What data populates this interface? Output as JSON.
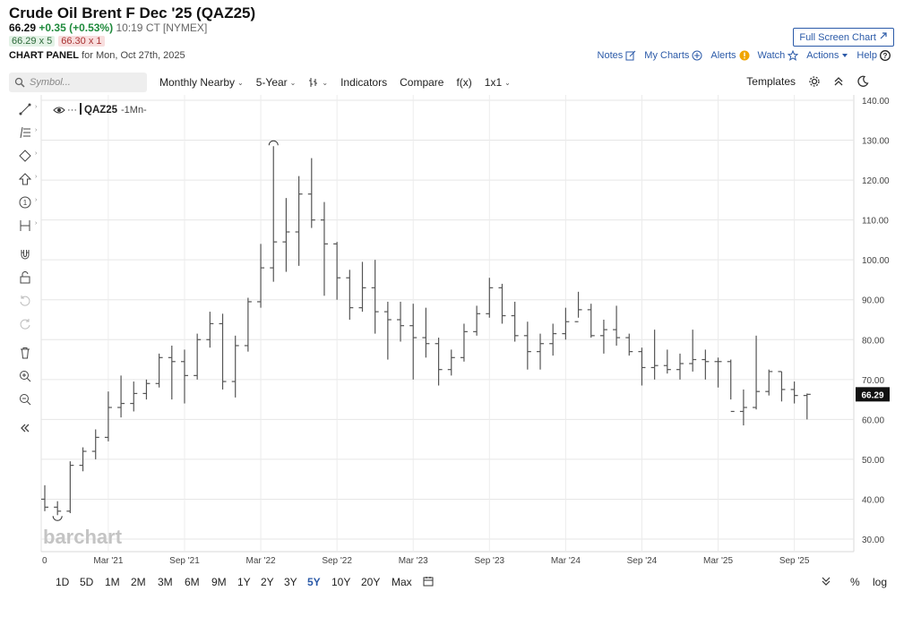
{
  "header": {
    "title": "Crude Oil Brent F Dec '25 (QAZ25)",
    "last": "66.29",
    "change": "+0.35 (+0.53%)",
    "time": "10:19 CT [NYMEX]",
    "bid": "66.29 x 5",
    "ask": "66.30 x 1",
    "panel_label": "CHART PANEL",
    "panel_date": "for Mon, Oct 27th, 2025",
    "fullscreen_label": "Full Screen Chart",
    "links": [
      {
        "label": "Notes",
        "icon": "edit-icon"
      },
      {
        "label": "My Charts",
        "icon": "plus-circle-icon"
      },
      {
        "label": "Alerts",
        "icon": "alert-badge-icon"
      },
      {
        "label": "Watch",
        "icon": "star-icon"
      },
      {
        "label": "Actions",
        "icon": "caret-down-icon"
      },
      {
        "label": "Help",
        "icon": "help-icon"
      }
    ]
  },
  "toolbar": {
    "symbol_placeholder": "Symbol...",
    "period": "Monthly Nearby",
    "range": "5-Year",
    "indicators": "Indicators",
    "compare": "Compare",
    "fx": "f(x)",
    "layout": "1x1",
    "templates": "Templates"
  },
  "legend": {
    "symbol": "QAZ25",
    "interval": "-1Mn-"
  },
  "watermark": "barchart",
  "chart_data": {
    "type": "ohlc",
    "ylim": [
      30,
      140
    ],
    "yticks": [
      "140.00",
      "130.00",
      "120.00",
      "110.00",
      "100.00",
      "90.00",
      "80.00",
      "70.00",
      "60.00",
      "50.00",
      "40.00",
      "30.00"
    ],
    "xticks": [
      {
        "label": "0",
        "i": 0
      },
      {
        "label": "Mar '21",
        "i": 5
      },
      {
        "label": "Sep '21",
        "i": 11
      },
      {
        "label": "Mar '22",
        "i": 17
      },
      {
        "label": "Sep '22",
        "i": 23
      },
      {
        "label": "Mar '23",
        "i": 29
      },
      {
        "label": "Sep '23",
        "i": 35
      },
      {
        "label": "Mar '24",
        "i": 41
      },
      {
        "label": "Sep '24",
        "i": 47
      },
      {
        "label": "Mar '25",
        "i": 53
      },
      {
        "label": "Sep '25",
        "i": 59
      }
    ],
    "last_price": 66.29,
    "bars": [
      [
        40.0,
        43.5,
        37.0,
        38.0
      ],
      [
        38.0,
        39.5,
        36.0,
        37.0
      ],
      [
        37.0,
        49.5,
        36.5,
        48.5
      ],
      [
        48.5,
        53.0,
        47.0,
        52.0
      ],
      [
        52.0,
        57.5,
        50.0,
        55.5
      ],
      [
        55.5,
        67.0,
        54.5,
        63.0
      ],
      [
        63.0,
        71.0,
        60.5,
        64.0
      ],
      [
        64.0,
        69.5,
        62.0,
        66.5
      ],
      [
        66.5,
        70.0,
        65.0,
        69.0
      ],
      [
        69.0,
        76.5,
        68.0,
        75.5
      ],
      [
        75.5,
        78.5,
        65.0,
        74.5
      ],
      [
        74.5,
        77.5,
        64.0,
        71.0
      ],
      [
        71.0,
        81.5,
        70.0,
        80.0
      ],
      [
        80.0,
        87.0,
        78.0,
        84.0
      ],
      [
        84.0,
        86.5,
        67.5,
        69.5
      ],
      [
        69.5,
        81.0,
        65.5,
        78.5
      ],
      [
        78.5,
        90.5,
        77.0,
        89.5
      ],
      [
        89.5,
        104.0,
        88.0,
        98.0
      ],
      [
        98.0,
        128.5,
        94.5,
        104.5
      ],
      [
        104.5,
        115.5,
        97.0,
        107.0
      ],
      [
        107.0,
        121.0,
        98.5,
        116.5
      ],
      [
        116.5,
        125.5,
        108.0,
        110.0
      ],
      [
        110.0,
        114.5,
        91.0,
        104.0
      ],
      [
        104.0,
        104.5,
        90.0,
        95.5
      ],
      [
        95.5,
        97.5,
        85.0,
        88.0
      ],
      [
        88.0,
        99.5,
        87.0,
        93.0
      ],
      [
        93.0,
        100.0,
        81.5,
        87.0
      ],
      [
        87.0,
        89.5,
        75.0,
        85.0
      ],
      [
        85.0,
        89.5,
        79.5,
        83.5
      ],
      [
        83.5,
        89.0,
        70.0,
        80.5
      ],
      [
        80.5,
        88.0,
        75.5,
        79.0
      ],
      [
        79.0,
        80.5,
        68.5,
        72.5
      ],
      [
        72.5,
        77.5,
        71.0,
        75.5
      ],
      [
        75.5,
        84.0,
        74.5,
        82.0
      ],
      [
        82.0,
        88.5,
        81.0,
        86.5
      ],
      [
        86.5,
        95.5,
        85.5,
        93.0
      ],
      [
        93.0,
        94.0,
        84.0,
        86.0
      ],
      [
        86.0,
        89.5,
        79.5,
        81.0
      ],
      [
        81.0,
        84.5,
        72.5,
        77.0
      ],
      [
        77.0,
        81.5,
        72.5,
        79.0
      ],
      [
        79.0,
        84.0,
        76.0,
        81.5
      ],
      [
        81.5,
        88.0,
        80.0,
        84.5
      ],
      [
        84.5,
        92.0,
        85.5,
        87.5
      ],
      [
        87.5,
        89.0,
        80.5,
        81.0
      ],
      [
        81.0,
        85.0,
        76.5,
        82.5
      ],
      [
        82.5,
        88.5,
        78.5,
        80.5
      ],
      [
        80.5,
        81.5,
        76.0,
        77.0
      ],
      [
        77.0,
        78.0,
        68.5,
        73.0
      ],
      [
        73.0,
        82.5,
        70.0,
        73.5
      ],
      [
        73.5,
        77.5,
        71.5,
        72.5
      ],
      [
        72.5,
        76.5,
        70.0,
        74.0
      ],
      [
        74.0,
        82.5,
        72.0,
        75.0
      ],
      [
        75.0,
        77.5,
        70.0,
        74.5
      ],
      [
        74.5,
        75.5,
        68.0,
        74.5
      ],
      [
        74.5,
        75.0,
        65.0,
        62.0
      ],
      [
        62.0,
        67.5,
        58.5,
        63.0
      ],
      [
        63.0,
        81.0,
        62.5,
        67.0
      ],
      [
        67.0,
        72.5,
        66.0,
        72.0
      ],
      [
        72.0,
        72.0,
        64.5,
        67.5
      ],
      [
        67.5,
        69.5,
        64.0,
        66.0
      ],
      [
        66.0,
        66.5,
        60.0,
        66.29
      ]
    ]
  }
}
